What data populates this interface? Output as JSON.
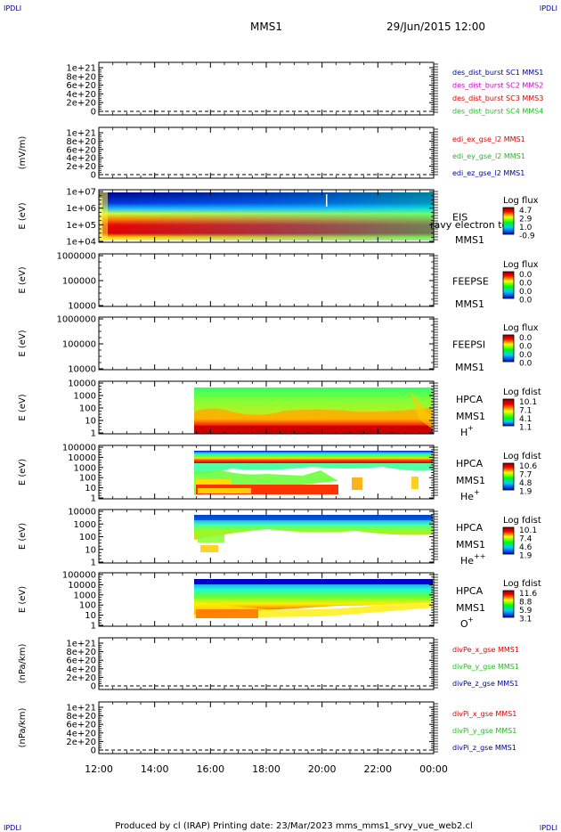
{
  "header": {
    "corner_left": "IPDLI",
    "corner_right": "IPDLI",
    "title": "MMS1",
    "datetime": "29/Jun/2015 12:00"
  },
  "footer": {
    "corner_left": "IPDLI",
    "corner_right": "IPDLI",
    "text": "Produced by cl (IRAP)   Printing date: 23/Mar/2023   mms_mms1_srvy_vue_web2.cl"
  },
  "colors": {
    "red": "#dd0000",
    "magenta": "#cc00cc",
    "green": "#22bb22",
    "blue": "#000099",
    "darkblue": "#0000aa"
  },
  "chart_data": {
    "type": "heatmap",
    "x_ticks": [
      "12:00",
      "14:00",
      "16:00",
      "18:00",
      "20:00",
      "22:00",
      "00:00"
    ],
    "panels": [
      {
        "id": "p1",
        "kind": "line",
        "ylabel": "",
        "yticks": [
          "1e+21",
          "8e+20",
          "6e+20",
          "4e+20",
          "2e+20",
          "0"
        ],
        "legend": [
          {
            "text": "des_dist_burst SC1 MMS1",
            "color": "#000099"
          },
          {
            "text": "des_dist_burst SC2 MMS2",
            "color": "#cc00cc"
          },
          {
            "text": "des_dist_burst SC3 MMS3",
            "color": "#dd0000"
          },
          {
            "text": "des_dist_burst SC4 MMS4",
            "color": "#22bb22"
          }
        ]
      },
      {
        "id": "p2",
        "kind": "line",
        "ylabel": "(mV/m)",
        "yticks": [
          "1e+21",
          "8e+20",
          "6e+20",
          "4e+20",
          "2e+20",
          "0"
        ],
        "legend": [
          {
            "text": "edi_ex_gse_l2 MMS1",
            "color": "#dd0000"
          },
          {
            "text": "edi_ey_gse_l2 MMS1",
            "color": "#22bb22"
          },
          {
            "text": "edi_ez_gse_l2 MMS1",
            "color": "#000099"
          }
        ]
      },
      {
        "id": "p3",
        "kind": "spectro",
        "ylabel": "E (eV)",
        "yticks": [
          "1e+07",
          "1e+06",
          "1e+05",
          "1e+04"
        ],
        "labels": [
          "EIS",
          "MMS1"
        ],
        "overlay": "ravy electron to",
        "cbar_title": "Log flux",
        "cbar_ticks": [
          "4.7",
          "2.9",
          "1.0",
          "-0.9"
        ],
        "cbar_type": "full"
      },
      {
        "id": "p4",
        "kind": "spectro",
        "ylabel": "E (eV)",
        "yticks": [
          "1000000",
          "100000",
          "10000"
        ],
        "labels": [
          "FEEPSE",
          "MMS1"
        ],
        "cbar_title": "Log flux",
        "cbar_ticks": [
          "0.0",
          "0.0",
          "0.0",
          "0.0"
        ],
        "cbar_type": "full"
      },
      {
        "id": "p5",
        "kind": "spectro",
        "ylabel": "E (eV)",
        "yticks": [
          "1000000",
          "100000",
          "10000"
        ],
        "labels": [
          "FEEPSI",
          "MMS1"
        ],
        "cbar_title": "Log flux",
        "cbar_ticks": [
          "0.0",
          "0.0",
          "0.0",
          "0.0"
        ],
        "cbar_type": "full"
      },
      {
        "id": "p6",
        "kind": "spectro",
        "ylabel": "E (eV)",
        "yticks": [
          "10000",
          "1000",
          "100",
          "10",
          "1"
        ],
        "labels": [
          "HPCA",
          "MMS1"
        ],
        "species": "H",
        "species_sup": "+",
        "cbar_title": "Log fdist",
        "cbar_ticks": [
          "10.1",
          "7.1",
          "4.1",
          "1.1"
        ],
        "cbar_type": "noblue"
      },
      {
        "id": "p7",
        "kind": "spectro",
        "ylabel": "E (eV)",
        "yticks": [
          "100000",
          "10000",
          "1000",
          "100",
          "10",
          "1"
        ],
        "labels": [
          "HPCA",
          "MMS1"
        ],
        "species": "He",
        "species_sup": "+",
        "cbar_title": "Log fdist",
        "cbar_ticks": [
          "10.6",
          "7.7",
          "4.8",
          "1.9"
        ],
        "cbar_type": "full"
      },
      {
        "id": "p8",
        "kind": "spectro",
        "ylabel": "E (eV)",
        "yticks": [
          "10000",
          "1000",
          "100",
          "10",
          "1"
        ],
        "labels": [
          "HPCA",
          "MMS1"
        ],
        "species": "He",
        "species_sup": "++",
        "cbar_title": "Log fdist",
        "cbar_ticks": [
          "10.1",
          "7.4",
          "4.6",
          "1.9"
        ],
        "cbar_type": "full"
      },
      {
        "id": "p9",
        "kind": "spectro",
        "ylabel": "E (eV)",
        "yticks": [
          "100000",
          "10000",
          "1000",
          "100",
          "10",
          "1"
        ],
        "labels": [
          "HPCA",
          "MMS1"
        ],
        "species": "O",
        "species_sup": "+",
        "cbar_title": "Log fdist",
        "cbar_ticks": [
          "11.6",
          "8.8",
          "5.9",
          "3.1"
        ],
        "cbar_type": "full"
      },
      {
        "id": "p10",
        "kind": "line",
        "ylabel": "(nPa/km)",
        "yticks": [
          "1e+21",
          "8e+20",
          "6e+20",
          "4e+20",
          "2e+20",
          "0"
        ],
        "legend": [
          {
            "text": "divPe_x_gse MMS1",
            "color": "#dd0000"
          },
          {
            "text": "divPe_y_gse MMS1",
            "color": "#22bb22"
          },
          {
            "text": "divPe_z_gse MMS1",
            "color": "#000099"
          }
        ]
      },
      {
        "id": "p11",
        "kind": "line",
        "ylabel": "(nPa/km)",
        "yticks": [
          "1e+21",
          "8e+20",
          "6e+20",
          "4e+20",
          "2e+20",
          "0"
        ],
        "legend": [
          {
            "text": "divPi_x_gse MMS1",
            "color": "#dd0000"
          },
          {
            "text": "divPi_y_gse MMS1",
            "color": "#22bb22"
          },
          {
            "text": "divPi_z_gse MMS1",
            "color": "#000099"
          }
        ]
      }
    ]
  }
}
